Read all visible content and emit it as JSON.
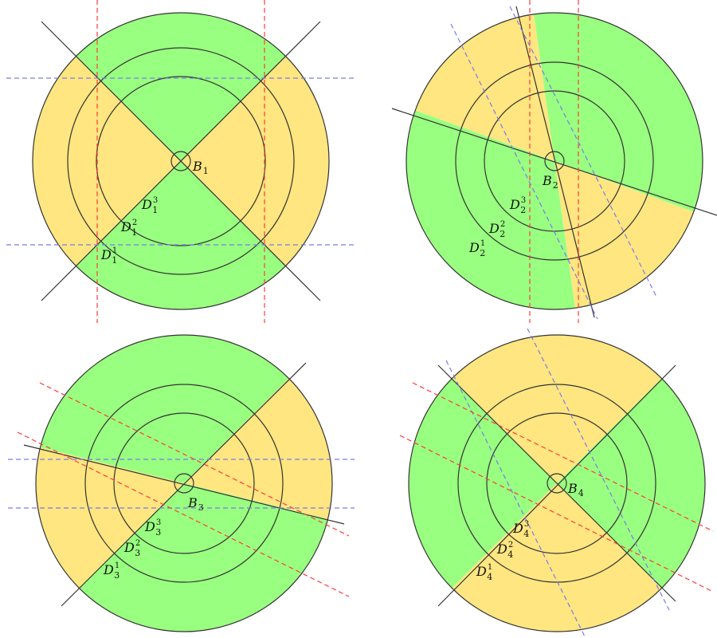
{
  "colors": {
    "green": "#99ff80",
    "yellow": "#ffe680",
    "stroke": "#333333",
    "red_guide": "#ff3b3b",
    "blue_guide": "#7a7af0"
  },
  "panels": [
    {
      "index": 1,
      "center_label": "B",
      "center_index": "1",
      "ring_labels": [
        {
          "letter": "D",
          "sub": "1",
          "sup": "3"
        },
        {
          "letter": "D",
          "sub": "1",
          "sup": "2"
        },
        {
          "letter": "D",
          "sub": "1",
          "sup": "1"
        }
      ]
    },
    {
      "index": 2,
      "center_label": "B",
      "center_index": "2",
      "ring_labels": [
        {
          "letter": "D",
          "sub": "2",
          "sup": "3"
        },
        {
          "letter": "D",
          "sub": "2",
          "sup": "2"
        },
        {
          "letter": "D",
          "sub": "2",
          "sup": "1"
        }
      ]
    },
    {
      "index": 3,
      "center_label": "B",
      "center_index": "3",
      "ring_labels": [
        {
          "letter": "D",
          "sub": "3",
          "sup": "3"
        },
        {
          "letter": "D",
          "sub": "3",
          "sup": "2"
        },
        {
          "letter": "D",
          "sub": "3",
          "sup": "1"
        }
      ]
    },
    {
      "index": 4,
      "center_label": "B",
      "center_index": "4",
      "ring_labels": [
        {
          "letter": "D",
          "sub": "4",
          "sup": "3"
        },
        {
          "letter": "D",
          "sub": "4",
          "sup": "2"
        },
        {
          "letter": "D",
          "sub": "4",
          "sup": "1"
        }
      ]
    }
  ]
}
